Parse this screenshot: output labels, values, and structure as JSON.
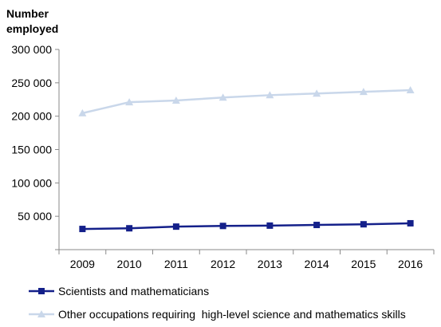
{
  "chart_data": {
    "type": "line",
    "title": "",
    "ylabel": [
      "Number",
      "employed"
    ],
    "xlabel": "",
    "categories": [
      "2009",
      "2010",
      "2011",
      "2012",
      "2013",
      "2014",
      "2015",
      "2016"
    ],
    "ylim": [
      0,
      300000
    ],
    "yticks": [
      0,
      50000,
      100000,
      150000,
      200000,
      250000,
      300000
    ],
    "ytick_labels": [
      "",
      "50 000",
      "100 000",
      "150 000",
      "200 000",
      "250 000",
      "300 000"
    ],
    "grid": false,
    "legend_position": "bottom",
    "series": [
      {
        "name": "Scientists and mathematicians",
        "marker": "square",
        "color": "#14208a",
        "values": [
          31000,
          32000,
          34500,
          35500,
          36000,
          37000,
          38000,
          39500
        ]
      },
      {
        "name": "Other occupations requiring  high-level science and mathematics skills",
        "marker": "triangle",
        "color": "#c9d7ea",
        "values": [
          204500,
          221000,
          223500,
          228000,
          231500,
          234000,
          236500,
          239000
        ]
      }
    ]
  }
}
